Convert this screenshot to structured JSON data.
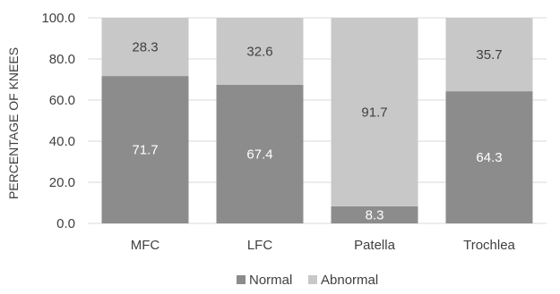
{
  "chart_data": {
    "type": "bar",
    "stacked": true,
    "categories": [
      "MFC",
      "LFC",
      "Patella",
      "Trochlea"
    ],
    "series": [
      {
        "name": "Normal",
        "values": [
          71.7,
          67.4,
          8.3,
          64.3
        ],
        "color": "#8c8c8c",
        "label_color": "#ffffff"
      },
      {
        "name": "Abnormal",
        "values": [
          28.3,
          32.6,
          91.7,
          35.7
        ],
        "color": "#c8c8c8",
        "label_color": "#404040"
      }
    ],
    "ylabel": "PERCENTAGE OF KNEES",
    "xlabel": "",
    "ylim": [
      0,
      100
    ],
    "yticks": [
      "0.0",
      "20.0",
      "40.0",
      "60.0",
      "80.0",
      "100.0"
    ],
    "grid": true,
    "legend_position": "bottom"
  }
}
